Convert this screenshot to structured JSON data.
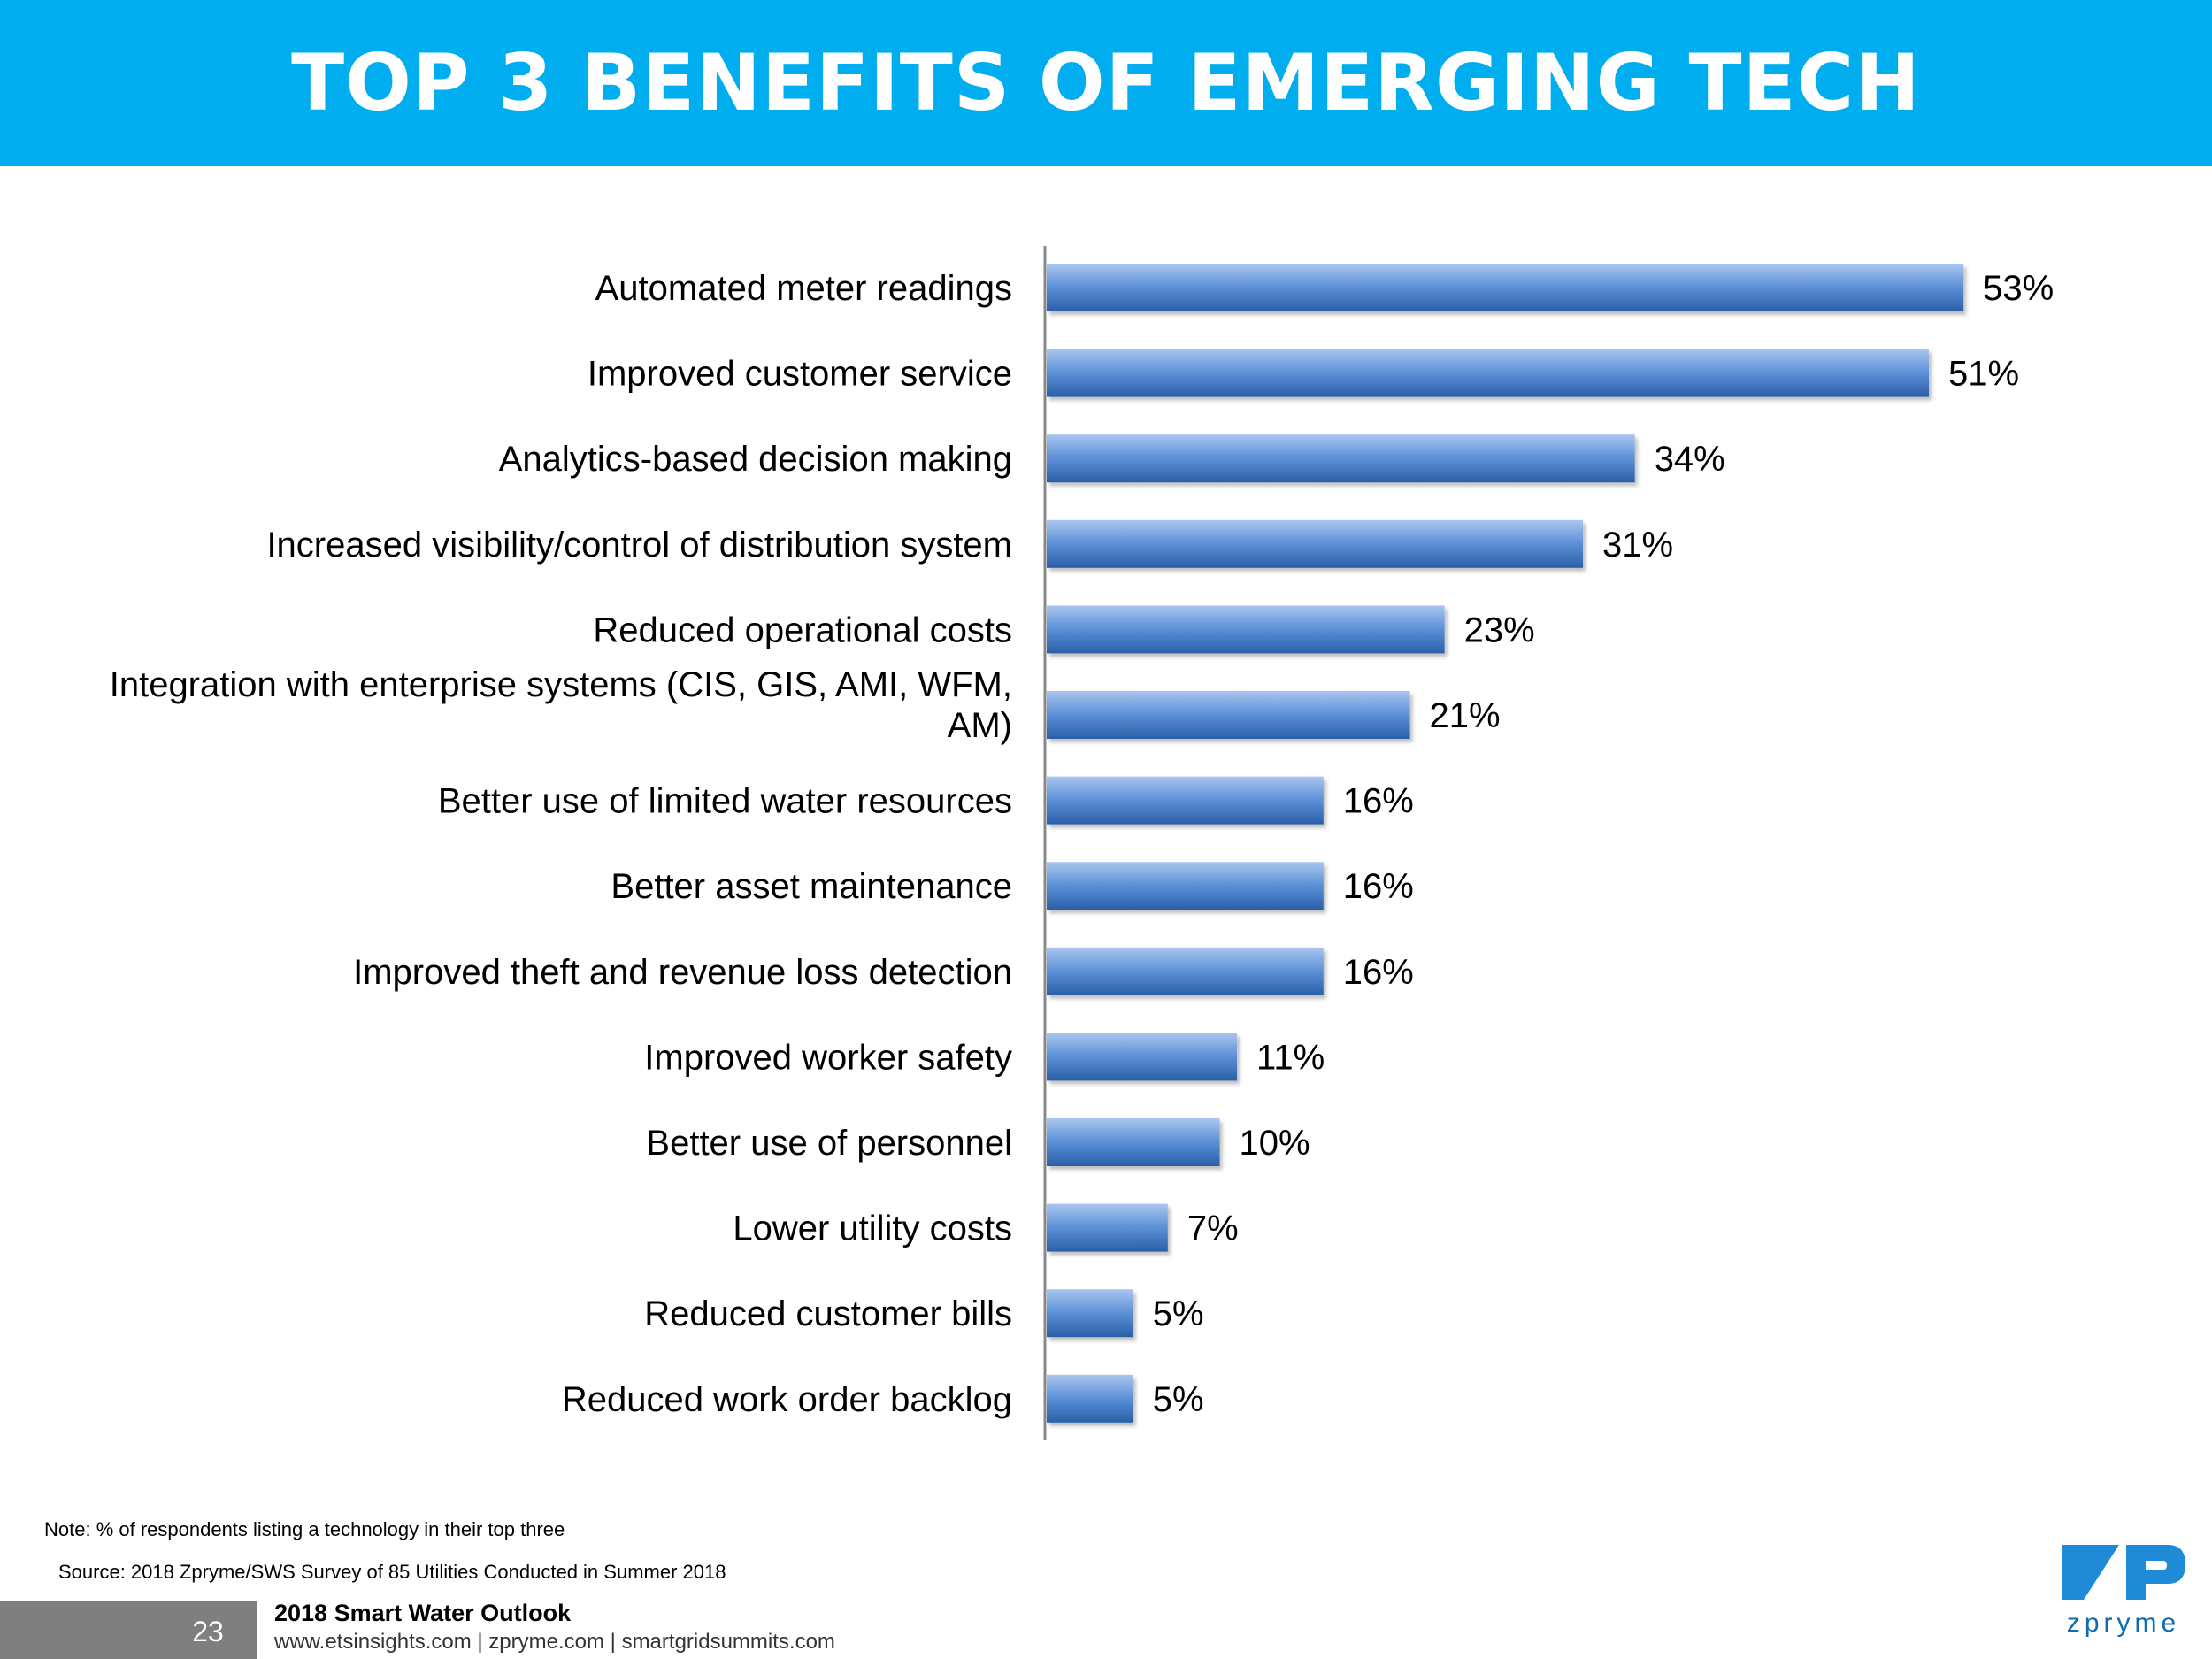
{
  "header": {
    "title": "TOP 3 BENEFITS OF EMERGING TECH",
    "background": "#00ADEE"
  },
  "chart_data": {
    "type": "bar",
    "orientation": "horizontal",
    "categories": [
      "Automated meter readings",
      "Improved customer service",
      "Analytics-based decision making",
      "Increased visibility/control of distribution system",
      "Reduced operational costs",
      "Integration with enterprise systems (CIS, GIS, AMI, WFM, AM)",
      "Better use of limited water resources",
      "Better asset maintenance",
      "Improved theft and revenue loss detection",
      "Improved worker safety",
      "Better use of personnel",
      "Lower utility costs",
      "Reduced customer bills",
      "Reduced work order backlog"
    ],
    "category_lines": [
      [
        "Automated meter readings"
      ],
      [
        "Improved customer service"
      ],
      [
        "Analytics-based decision making"
      ],
      [
        "Increased visibility/control of distribution system"
      ],
      [
        "Reduced operational costs"
      ],
      [
        "Integration with enterprise systems (CIS, GIS, AMI, WFM,",
        "AM)"
      ],
      [
        "Better use of limited water resources"
      ],
      [
        "Better asset maintenance"
      ],
      [
        "Improved theft and revenue loss detection"
      ],
      [
        "Improved worker safety"
      ],
      [
        "Better use of personnel"
      ],
      [
        "Lower utility costs"
      ],
      [
        "Reduced customer bills"
      ],
      [
        "Reduced work order backlog"
      ]
    ],
    "values": [
      53,
      51,
      34,
      31,
      23,
      21,
      16,
      16,
      16,
      11,
      10,
      7,
      5,
      5
    ],
    "value_labels": [
      "53%",
      "51%",
      "34%",
      "31%",
      "23%",
      "21%",
      "16%",
      "16%",
      "16%",
      "11%",
      "10%",
      "7%",
      "5%",
      "5%"
    ],
    "unit": "%",
    "bar_color": "#3D72BC",
    "grid": false
  },
  "footer": {
    "note": "Note: % of respondents listing a technology in their top three",
    "source": "Source: 2018 Zpryme/SWS Survey of 85 Utilities Conducted in Summer 2018",
    "page_number": "23",
    "report_title": "2018 Smart Water Outlook",
    "links": "www.etsinsights.com | zpryme.com | smartgridsummits.com",
    "logo_text": "zpryme",
    "logo_icon": "zp-logo-icon"
  }
}
